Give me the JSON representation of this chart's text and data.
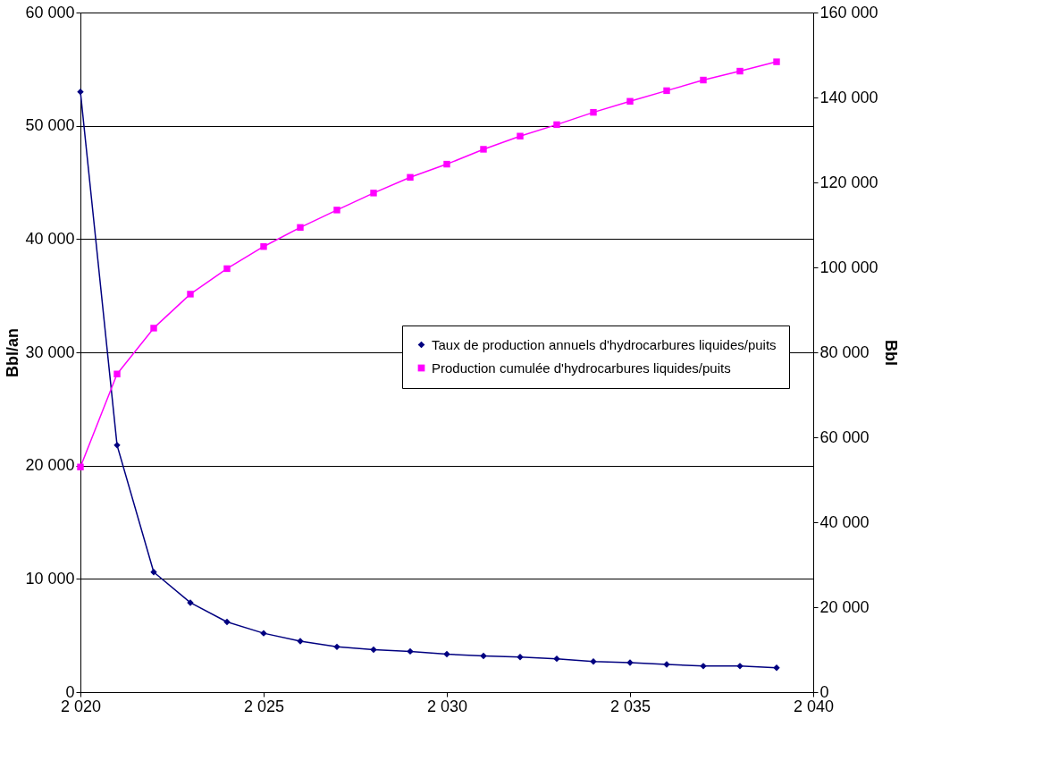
{
  "chart_data": {
    "type": "line",
    "xlabel": null,
    "ylabel": "Bbl/an",
    "y2label": "Bbl",
    "x": [
      2020,
      2021,
      2022,
      2023,
      2024,
      2025,
      2026,
      2027,
      2028,
      2029,
      2030,
      2031,
      2032,
      2033,
      2034,
      2035,
      2036,
      2037,
      2038,
      2039
    ],
    "series": [
      {
        "name": "Taux de production annuels d'hydrocarbures liquides/puits",
        "color": "#000080",
        "marker": "diamond",
        "values": [
          53000,
          21800,
          10600,
          7900,
          6200,
          5200,
          4500,
          4000,
          3750,
          3600,
          3350,
          3200,
          3100,
          2950,
          2700,
          2600,
          2450,
          2300,
          2300,
          2150
        ]
      },
      {
        "name": "Production cumulée d'hydrocarbures liquides/puits",
        "color": "#ff00ff",
        "marker": "square",
        "axis": "y2",
        "values": [
          53000,
          74900,
          85700,
          93700,
          99700,
          104900,
          109400,
          113500,
          117500,
          121200,
          124300,
          127800,
          130900,
          133600,
          136500,
          139100,
          141600,
          144100,
          146200,
          148400
        ]
      }
    ],
    "xlim": [
      2020,
      2040
    ],
    "xticks": [
      {
        "value": 2020,
        "label": "2 020"
      },
      {
        "value": 2025,
        "label": "2 025"
      },
      {
        "value": 2030,
        "label": "2 030"
      },
      {
        "value": 2035,
        "label": "2 035"
      },
      {
        "value": 2040,
        "label": "2 040"
      }
    ],
    "ylim": [
      0,
      60000
    ],
    "yticks": [
      {
        "value": 0,
        "label": "0"
      },
      {
        "value": 10000,
        "label": "10 000"
      },
      {
        "value": 20000,
        "label": "20 000"
      },
      {
        "value": 30000,
        "label": "30 000"
      },
      {
        "value": 40000,
        "label": "40 000"
      },
      {
        "value": 50000,
        "label": "50 000"
      },
      {
        "value": 60000,
        "label": "60 000"
      }
    ],
    "y2lim": [
      0,
      160000
    ],
    "y2ticks": [
      {
        "value": 0,
        "label": "0"
      },
      {
        "value": 20000,
        "label": "20 000"
      },
      {
        "value": 40000,
        "label": "40 000"
      },
      {
        "value": 60000,
        "label": "60 000"
      },
      {
        "value": 80000,
        "label": "80 000"
      },
      {
        "value": 100000,
        "label": "100 000"
      },
      {
        "value": 120000,
        "label": "120 000"
      },
      {
        "value": 140000,
        "label": "140 000"
      },
      {
        "value": 160000,
        "label": "160 000"
      }
    ],
    "grid": "y",
    "legend": "right",
    "line_style": "solid"
  }
}
